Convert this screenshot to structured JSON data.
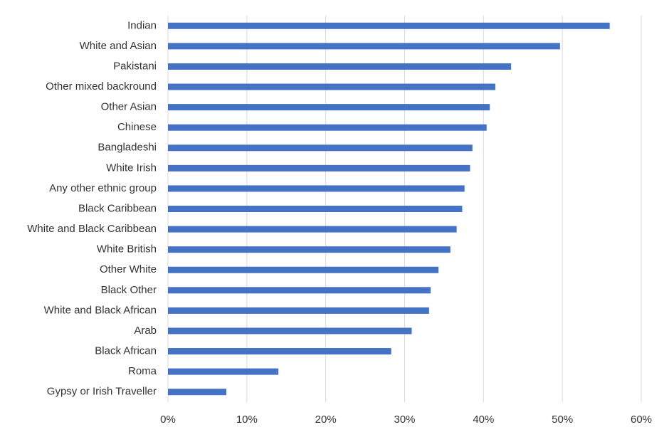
{
  "chart_data": {
    "type": "hbar",
    "categories": [
      "Indian",
      "White and Asian",
      "Pakistani",
      "Other mixed backround",
      "Other Asian",
      "Chinese",
      "Bangladeshi",
      "White Irish",
      "Any other ethnic group",
      "Black Caribbean",
      "White and Black Caribbean",
      "White British",
      "Other White",
      "Black Other",
      "White and Black African",
      "Arab",
      "Black African",
      "Roma",
      "Gypsy or Irish Traveller"
    ],
    "values": [
      56.0,
      49.7,
      43.5,
      41.5,
      40.8,
      40.4,
      38.6,
      38.3,
      37.6,
      37.3,
      36.6,
      35.8,
      34.3,
      33.3,
      33.1,
      30.9,
      28.3,
      14.0,
      7.4
    ],
    "color": "#4472c4",
    "xlim": [
      0,
      60
    ],
    "xticks": [
      {
        "value": 0,
        "label": "0%"
      },
      {
        "value": 10,
        "label": "10%"
      },
      {
        "value": 20,
        "label": "20%"
      },
      {
        "value": 30,
        "label": "30%"
      },
      {
        "value": 40,
        "label": "40%"
      },
      {
        "value": 50,
        "label": "50%"
      },
      {
        "value": 60,
        "label": "60%"
      }
    ],
    "grid": true
  }
}
